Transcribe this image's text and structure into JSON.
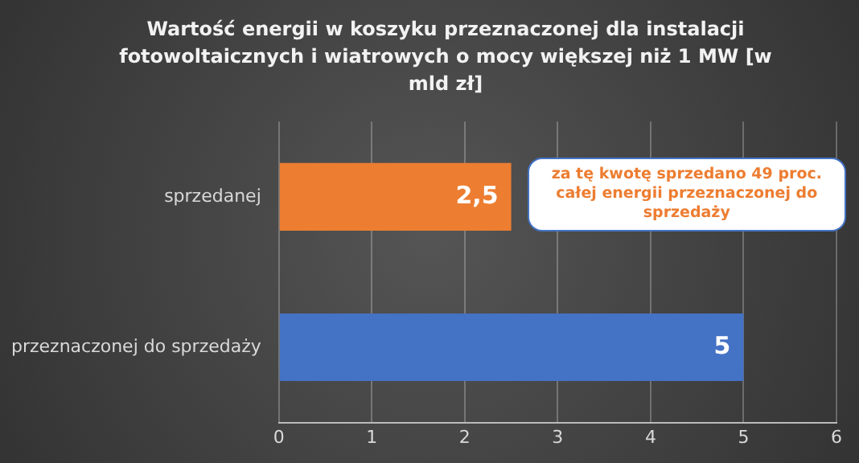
{
  "chart_data": {
    "type": "bar",
    "orientation": "horizontal",
    "title": "Wartość energii w koszyku przeznaczonej dla instalacji fotowoltaicznych i wiatrowych o mocy większej niż 1 MW [w mld zł]",
    "categories": [
      "sprzedanej",
      "przeznaczonej do sprzedaży"
    ],
    "values": [
      2.5,
      5
    ],
    "colors": [
      "#ed7d31",
      "#4472c4"
    ],
    "value_labels": [
      "2,5",
      "5"
    ],
    "xlim": [
      0,
      6
    ],
    "xticks": [
      0,
      1,
      2,
      3,
      4,
      5,
      6
    ],
    "grid": "x",
    "annotations": [
      {
        "text": "za tę kwotę sprzedano 49 proc. całej energii przeznaczonej do sprzedaży",
        "x": 2.5,
        "y": "sprzedanej"
      }
    ]
  }
}
